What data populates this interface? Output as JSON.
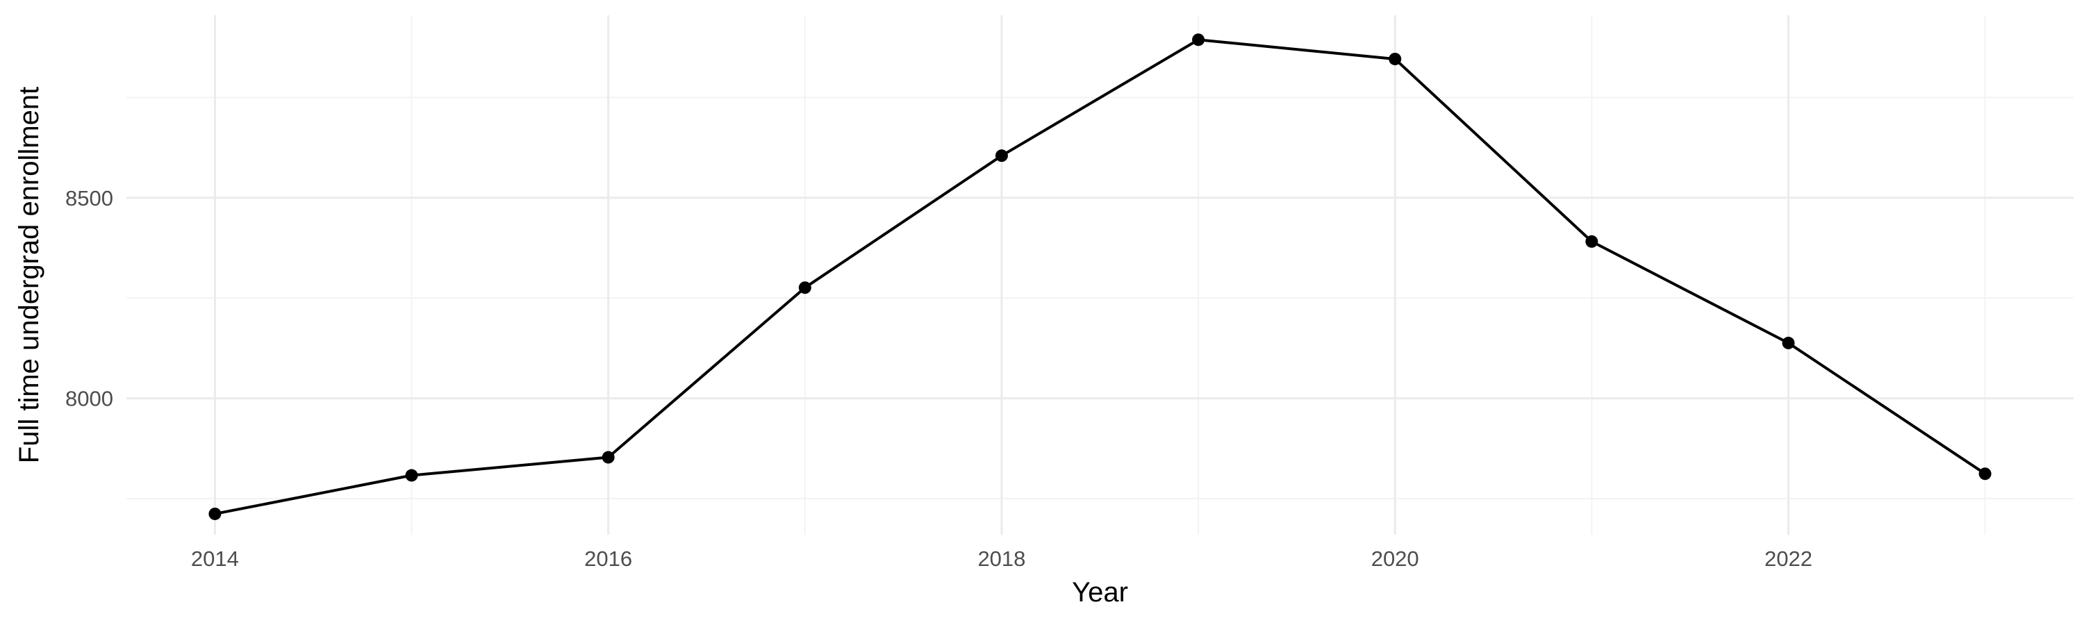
{
  "chart_data": {
    "type": "line",
    "title": "",
    "xlabel": "Year",
    "ylabel": "Full time undergrad enrollment",
    "xlim": [
      2013.55,
      2023.45
    ],
    "ylim": [
      7660,
      8955
    ],
    "x_ticks": [
      2014,
      2016,
      2018,
      2020,
      2022
    ],
    "x_tick_labels": [
      "2014",
      "2016",
      "2018",
      "2020",
      "2022"
    ],
    "y_ticks": [
      8000,
      8500
    ],
    "y_tick_labels": [
      "8000",
      "8500"
    ],
    "grid": true,
    "legend": "none",
    "series": [
      {
        "color": "#000000",
        "x": [
          2014,
          2015,
          2016,
          2017,
          2018,
          2019,
          2020,
          2021,
          2022,
          2023
        ],
        "values": [
          7712,
          7808,
          7853,
          8276,
          8605,
          8894,
          8846,
          8391,
          8138,
          7812
        ]
      }
    ]
  }
}
